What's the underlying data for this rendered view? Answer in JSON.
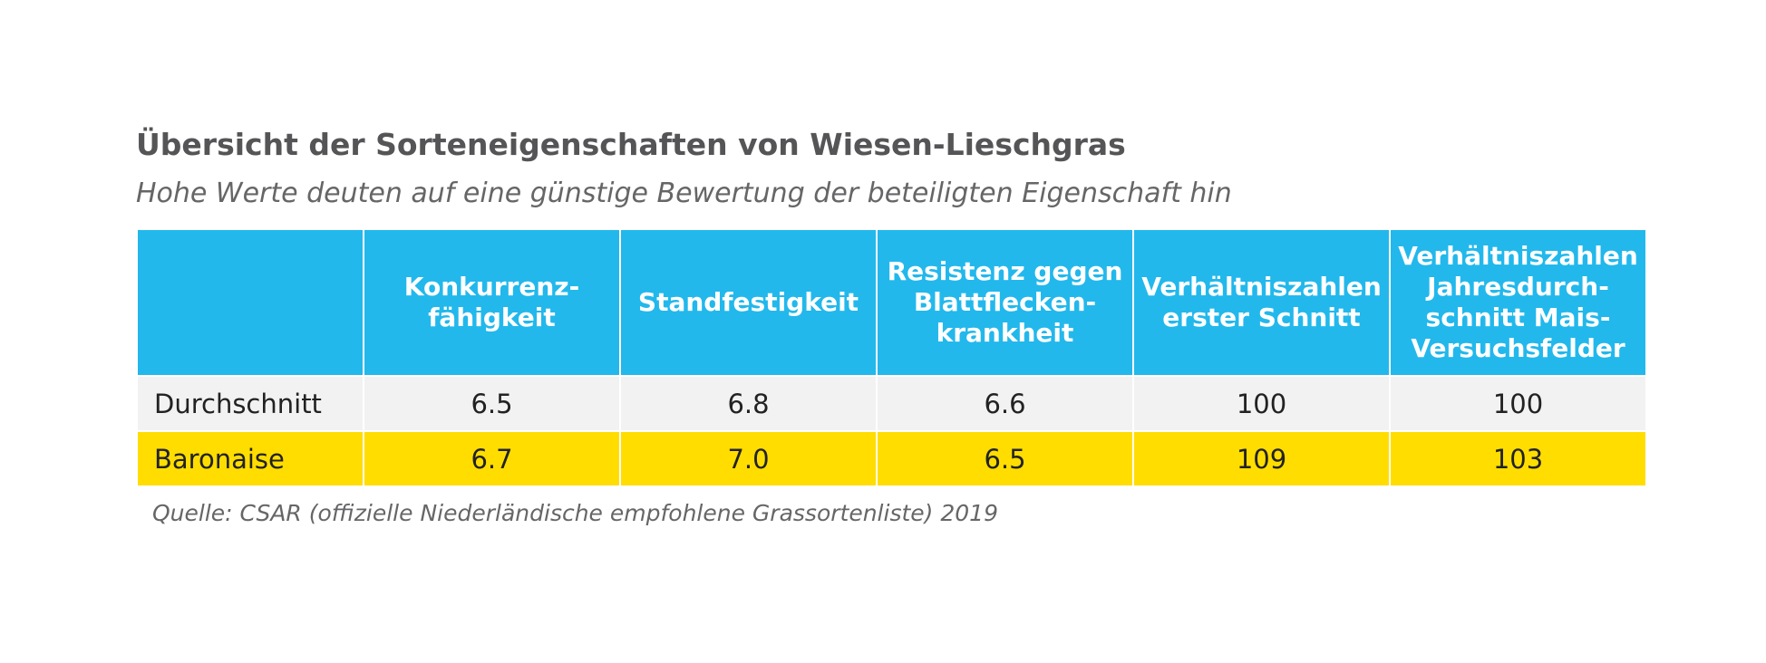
{
  "title": "Übersicht der Sorteneigenschaften von Wiesen-Lieschgras",
  "subtitle": "Hohe Werte deuten auf eine günstige Bewertung der beteiligten Eigenschaft hin",
  "table": {
    "headers": [
      "",
      "Konkurrenz-\nfähigkeit",
      "Standfestigkeit",
      "Resistenz gegen\nBlattflecken-\nkrankheit",
      "Verhältniszahlen\nerster Schnitt",
      "Verhältniszahlen\nJahresdurch-\nschnitt Mais-\nVersuchsfelder"
    ],
    "rows": [
      {
        "name": "Durchschnitt",
        "values": [
          "6.5",
          "6.8",
          "6.6",
          "100",
          "100"
        ]
      },
      {
        "name": "Baronaise",
        "values": [
          "6.7",
          "7.0",
          "6.5",
          "109",
          "103"
        ]
      }
    ]
  },
  "source": "Quelle: CSAR (offizielle Niederländische empfohlene Grassortenliste) 2019",
  "colors": {
    "header_bg": "#22b8ec",
    "highlight_row": "#ffdd00",
    "average_row": "#f2f2f2",
    "text_gray": "#555557"
  }
}
